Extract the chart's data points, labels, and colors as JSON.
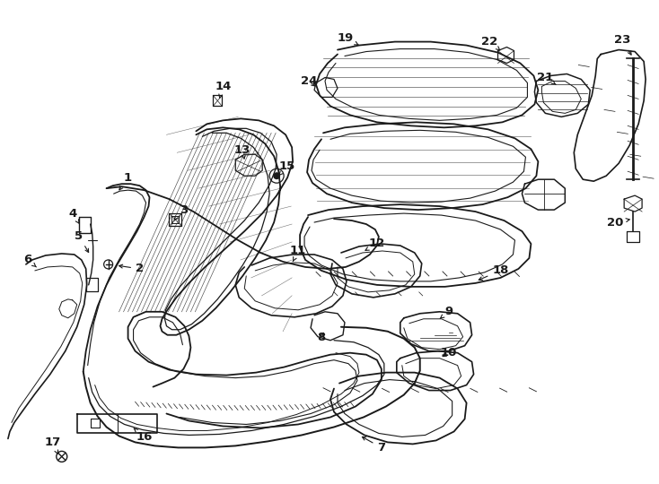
{
  "bg_color": "#ffffff",
  "line_color": "#1a1a1a",
  "fig_width": 7.34,
  "fig_height": 5.4,
  "dpi": 100,
  "label_fontsize": 9.5,
  "label_fontweight": "bold"
}
